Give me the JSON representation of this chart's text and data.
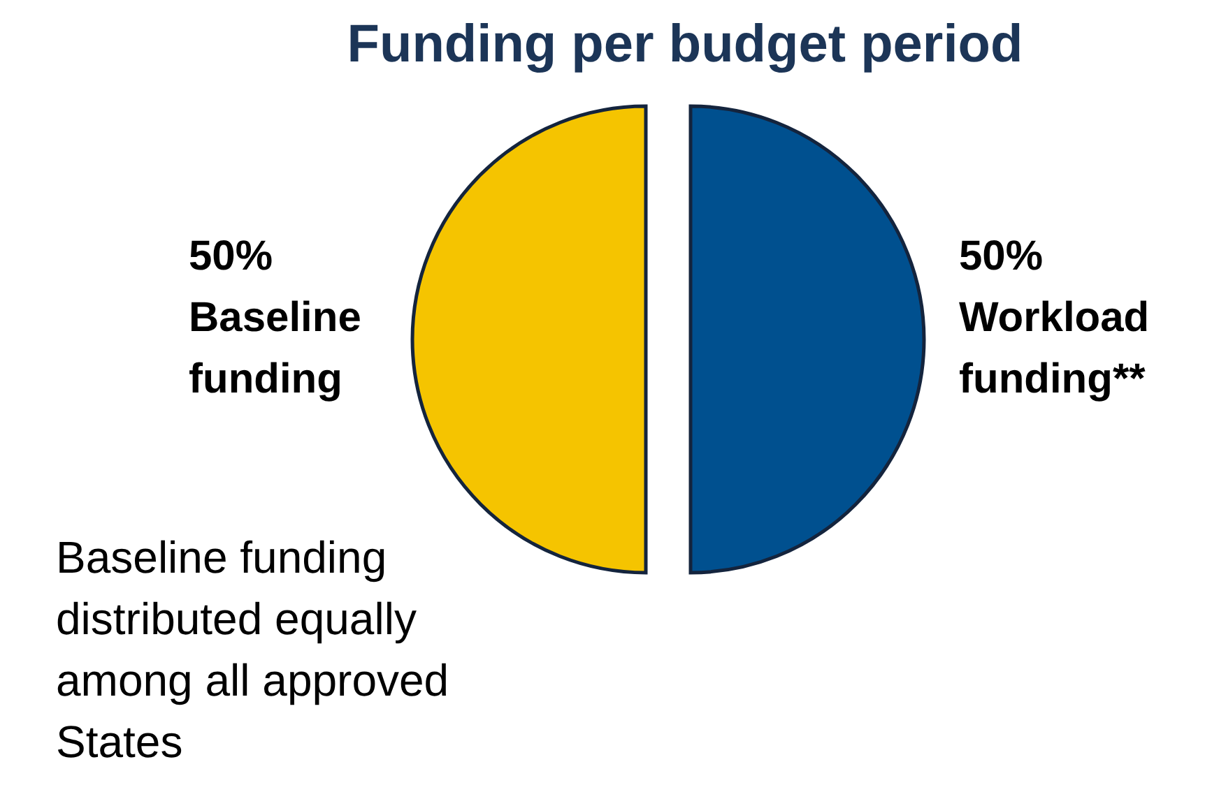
{
  "chart_data": {
    "type": "pie",
    "title": "Funding per budget period",
    "categories": [
      "Baseline funding",
      "Workload funding**"
    ],
    "values": [
      50,
      50
    ],
    "colors": [
      "#f5c400",
      "#00508f"
    ],
    "value_labels": [
      "50%",
      "50%"
    ],
    "legend": false,
    "annotations": [
      "Baseline funding distributed equally among all approved States"
    ]
  }
}
